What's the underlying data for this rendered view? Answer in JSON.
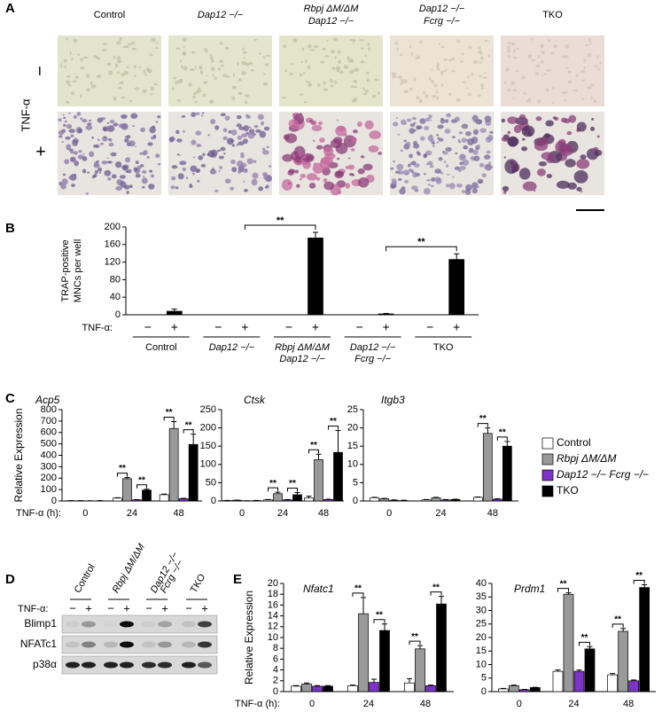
{
  "panel_labels": [
    "A",
    "B",
    "C",
    "D",
    "E"
  ],
  "panel_a": {
    "columns": [
      [
        "Control"
      ],
      [
        "Dap12 −/−"
      ],
      [
        "Rbpj ΔM/ΔM",
        "Dap12 −/−"
      ],
      [
        "Dap12 −/−",
        "Fcrg −/−"
      ],
      [
        "TKO"
      ]
    ],
    "row_label": "TNF-α",
    "rows": [
      "−",
      "+"
    ]
  },
  "panel_d": {
    "columns": [
      [
        "Control"
      ],
      [
        "Rbpj ΔM/ΔM"
      ],
      [
        "Dap12 −/−",
        "Fcrg −/−"
      ],
      [
        "TKO"
      ]
    ],
    "condition_label": "TNF-α:",
    "conditions": [
      "−",
      "+"
    ],
    "rows": [
      "Blimp1",
      "NFATc1",
      "p38α"
    ]
  },
  "chart_data": [
    {
      "type": "bar",
      "y_label": [
        "TRAP-positive",
        "MNCs per well"
      ],
      "x_label": "TNF-α:",
      "categories": [
        [
          "Control"
        ],
        [
          "Dap12 −/−"
        ],
        [
          "Rbpj ΔM/ΔM",
          "Dap12 −/−"
        ],
        [
          "Dap12 −/−",
          "Fcrg −/−"
        ],
        [
          "TKO"
        ]
      ],
      "series": [
        {
          "name": "−",
          "color": "#000000",
          "values": [
            0,
            0,
            0,
            0,
            0
          ]
        },
        {
          "name": "+",
          "color": "#000000",
          "values": [
            8,
            0,
            175,
            2,
            126
          ],
          "errors": [
            5,
            0,
            13,
            1,
            13
          ]
        }
      ],
      "ylim": [
        0,
        200
      ],
      "yticks": [
        0,
        40,
        80,
        120,
        160,
        200
      ],
      "significance": [
        {
          "label": "**",
          "from": [
            1,
            1
          ],
          "to": [
            2,
            1
          ]
        },
        {
          "label": "**",
          "from": [
            3,
            1
          ],
          "to": [
            4,
            1
          ]
        }
      ]
    },
    {
      "type": "bar",
      "title": "Acp5",
      "y_label": "Relative Expression",
      "x_label": "TNF-α (h):",
      "categories": [
        "0",
        "24",
        "48"
      ],
      "legend": true,
      "series": [
        {
          "name": "Control",
          "color": "#ffffff",
          "values": [
            2,
            25,
            55
          ],
          "errors": [
            1,
            3,
            5
          ]
        },
        {
          "name": "Rbpj ΔM/ΔM",
          "color": "#999999",
          "values": [
            2,
            195,
            635
          ],
          "errors": [
            1,
            10,
            60
          ]
        },
        {
          "name": "Dap12 −/− Fcrg −/−",
          "color": "#7d32c8",
          "values": [
            1,
            10,
            20
          ],
          "errors": [
            0.5,
            2,
            3
          ]
        },
        {
          "name": "TKO",
          "color": "#000000",
          "values": [
            2,
            95,
            495
          ],
          "errors": [
            1,
            8,
            90
          ]
        }
      ],
      "ylim": [
        0,
        800
      ],
      "yticks": [
        0,
        100,
        200,
        300,
        400,
        500,
        600,
        700,
        800
      ],
      "significance": [
        {
          "label": "**",
          "category": 1,
          "pair": [
            0,
            1
          ]
        },
        {
          "label": "**",
          "category": 1,
          "pair": [
            2,
            3
          ]
        },
        {
          "label": "**",
          "category": 2,
          "pair": [
            0,
            1
          ]
        },
        {
          "label": "**",
          "category": 2,
          "pair": [
            2,
            3
          ]
        }
      ]
    },
    {
      "type": "bar",
      "title": "Ctsk",
      "categories": [
        "0",
        "24",
        "48"
      ],
      "series": [
        {
          "color": "#ffffff",
          "values": [
            1,
            3,
            8
          ],
          "errors": [
            0.5,
            1,
            5
          ]
        },
        {
          "color": "#999999",
          "values": [
            2,
            20,
            113
          ],
          "errors": [
            0.5,
            4,
            15
          ]
        },
        {
          "color": "#7d32c8",
          "values": [
            0.5,
            3,
            4
          ],
          "errors": [
            0.2,
            1,
            1
          ]
        },
        {
          "color": "#000000",
          "values": [
            1,
            17,
            133
          ],
          "errors": [
            0.5,
            6,
            60
          ]
        }
      ],
      "ylim": [
        0,
        250
      ],
      "yticks": [
        0,
        50,
        100,
        150,
        200,
        250
      ],
      "significance": [
        {
          "label": "**",
          "category": 1,
          "pair": [
            0,
            1
          ]
        },
        {
          "label": "**",
          "category": 1,
          "pair": [
            2,
            3
          ]
        },
        {
          "label": "**",
          "category": 2,
          "pair": [
            0,
            1
          ]
        },
        {
          "label": "**",
          "category": 2,
          "pair": [
            2,
            3
          ]
        }
      ]
    },
    {
      "type": "bar",
      "title": "Itgb3",
      "categories": [
        "0",
        "24",
        "48"
      ],
      "series": [
        {
          "color": "#ffffff",
          "values": [
            0.9,
            0.3,
            1
          ],
          "errors": [
            0.1,
            0.1,
            0.1
          ]
        },
        {
          "color": "#999999",
          "values": [
            0.6,
            0.9,
            18.5
          ],
          "errors": [
            0.1,
            0.1,
            1.5
          ]
        },
        {
          "color": "#7d32c8",
          "values": [
            0.2,
            0.3,
            0.5
          ],
          "errors": [
            0.1,
            0.1,
            0.1
          ]
        },
        {
          "color": "#000000",
          "values": [
            0.1,
            0.4,
            15
          ],
          "errors": [
            0.1,
            0.1,
            1.3
          ]
        }
      ],
      "ylim": [
        0,
        25
      ],
      "yticks": [
        0,
        5,
        10,
        15,
        20,
        25
      ],
      "significance": [
        {
          "label": "**",
          "category": 2,
          "pair": [
            0,
            1
          ]
        },
        {
          "label": "**",
          "category": 2,
          "pair": [
            2,
            3
          ]
        }
      ]
    },
    {
      "type": "bar",
      "title": "Nfatc1",
      "y_label": "Relative Expression",
      "x_label": "TNF-α (h):",
      "categories": [
        "0",
        "24",
        "48"
      ],
      "series": [
        {
          "color": "#ffffff",
          "values": [
            1,
            1.1,
            1.6
          ],
          "errors": [
            0.1,
            0.1,
            0.8
          ]
        },
        {
          "color": "#999999",
          "values": [
            1.4,
            14.4,
            7.9
          ],
          "errors": [
            0.2,
            3,
            0.6
          ]
        },
        {
          "color": "#7d32c8",
          "values": [
            1,
            1.7,
            1.1
          ],
          "errors": [
            0.1,
            0.6,
            0.1
          ]
        },
        {
          "color": "#000000",
          "values": [
            1,
            11.3,
            16.2
          ],
          "errors": [
            0.1,
            1.2,
            1.4
          ]
        }
      ],
      "ylim": [
        0,
        20
      ],
      "yticks": [
        0,
        2,
        4,
        6,
        8,
        10,
        12,
        14,
        16,
        18,
        20
      ],
      "significance": [
        {
          "label": "**",
          "category": 1,
          "pair": [
            0,
            1
          ]
        },
        {
          "label": "**",
          "category": 1,
          "pair": [
            2,
            3
          ]
        },
        {
          "label": "**",
          "category": 2,
          "pair": [
            0,
            1
          ]
        },
        {
          "label": "**",
          "category": 2,
          "pair": [
            2,
            3
          ]
        }
      ]
    },
    {
      "type": "bar",
      "title": "Prdm1",
      "categories": [
        "0",
        "24",
        "48"
      ],
      "series": [
        {
          "color": "#ffffff",
          "values": [
            1,
            7.5,
            6.2
          ],
          "errors": [
            0.2,
            0.5,
            0.5
          ]
        },
        {
          "color": "#999999",
          "values": [
            2.2,
            36,
            22.3
          ],
          "errors": [
            0.2,
            0.5,
            1
          ]
        },
        {
          "color": "#7d32c8",
          "values": [
            0.7,
            7.5,
            4
          ],
          "errors": [
            0.1,
            0.5,
            0.3
          ]
        },
        {
          "color": "#000000",
          "values": [
            1.5,
            15.8,
            38.5
          ],
          "errors": [
            0.1,
            0.8,
            1
          ]
        }
      ],
      "ylim": [
        0,
        40
      ],
      "yticks": [
        0,
        5,
        10,
        15,
        20,
        25,
        30,
        35,
        40
      ],
      "significance": [
        {
          "label": "**",
          "category": 1,
          "pair": [
            0,
            1
          ]
        },
        {
          "label": "**",
          "category": 1,
          "pair": [
            2,
            3
          ]
        },
        {
          "label": "**",
          "category": 2,
          "pair": [
            0,
            1
          ]
        },
        {
          "label": "**",
          "category": 2,
          "pair": [
            2,
            3
          ]
        }
      ]
    }
  ]
}
